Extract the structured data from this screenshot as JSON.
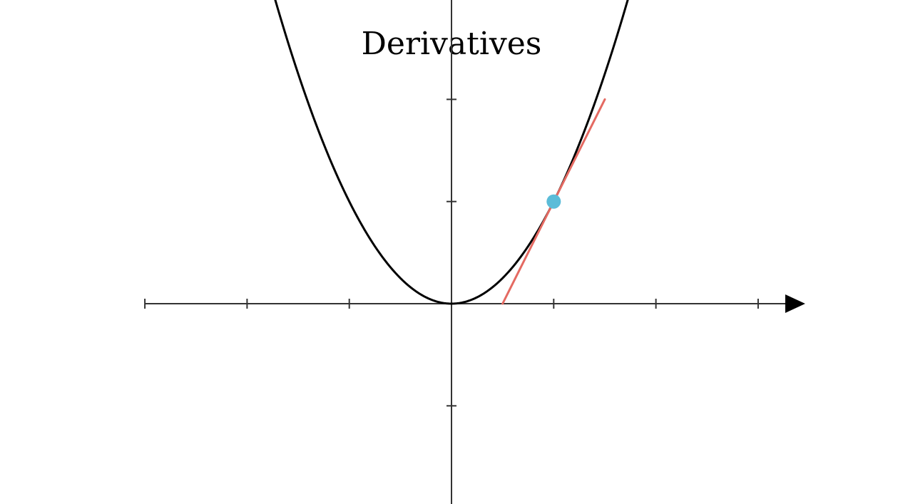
{
  "chart_data": {
    "type": "line",
    "title": "Derivatives",
    "xlabel": "",
    "ylabel": "",
    "xlim": [
      -3,
      3
    ],
    "ylim": [
      -2,
      4
    ],
    "x_ticks": [
      -3,
      -2,
      -1,
      1,
      2,
      3
    ],
    "y_ticks": [
      -2,
      -1,
      1,
      2,
      3
    ],
    "grid": false,
    "series": [
      {
        "function": "x^2",
        "color": "#000000"
      }
    ],
    "point": {
      "x": 1,
      "y": 1,
      "color": "#5bbcd8"
    },
    "tangent": {
      "slope": 2,
      "x_range": [
        0.5,
        1.5
      ],
      "color": "#e46a62"
    }
  }
}
